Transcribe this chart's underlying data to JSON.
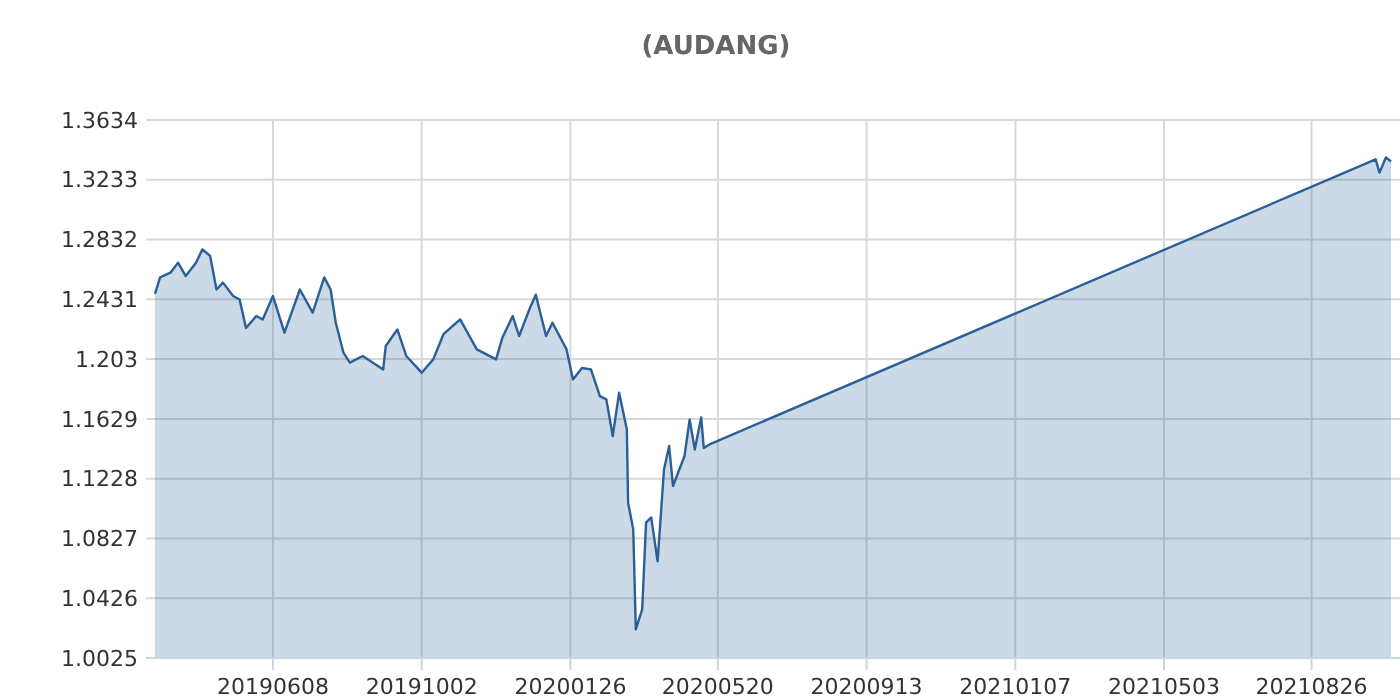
{
  "chart_data": {
    "type": "area",
    "title": "(AUDANG)",
    "x": [
      "2019-03-08",
      "2019-03-12",
      "2019-03-20",
      "2019-03-26",
      "2019-04-01",
      "2019-04-09",
      "2019-04-14",
      "2019-04-20",
      "2019-04-25",
      "2019-04-30",
      "2019-05-08",
      "2019-05-13",
      "2019-05-18",
      "2019-05-26",
      "2019-05-31",
      "2019-06-08",
      "2019-06-17",
      "2019-06-29",
      "2019-07-09",
      "2019-07-18",
      "2019-07-23",
      "2019-07-27",
      "2019-08-02",
      "2019-08-07",
      "2019-08-17",
      "2019-09-02",
      "2019-09-04",
      "2019-09-13",
      "2019-09-20",
      "2019-10-02",
      "2019-10-11",
      "2019-10-19",
      "2019-11-01",
      "2019-11-14",
      "2019-11-29",
      "2019-12-04",
      "2019-12-12",
      "2019-12-17",
      "2019-12-25",
      "2019-12-30",
      "2020-01-07",
      "2020-01-12",
      "2020-01-23",
      "2020-01-28",
      "2020-02-04",
      "2020-02-11",
      "2020-02-18",
      "2020-02-23",
      "2020-02-28",
      "2020-03-04",
      "2020-03-10",
      "2020-03-11",
      "2020-03-15",
      "2020-03-17",
      "2020-03-22",
      "2020-03-25",
      "2020-03-29",
      "2020-04-03",
      "2020-04-08",
      "2020-04-12",
      "2020-04-15",
      "2020-04-24",
      "2020-04-28",
      "2020-05-02",
      "2020-05-07",
      "2020-05-09",
      "2020-05-14",
      "2021-10-15",
      "2021-10-18",
      "2021-10-23",
      "2021-10-27"
    ],
    "series": [
      {
        "color": "#2a5f98",
        "values": [
          1.2467,
          1.2578,
          1.261,
          1.2677,
          1.2587,
          1.2677,
          1.2766,
          1.2722,
          1.2497,
          1.2543,
          1.2453,
          1.243,
          1.2239,
          1.2319,
          1.2296,
          1.2453,
          1.2208,
          1.2497,
          1.2342,
          1.2578,
          1.2497,
          1.2274,
          1.2073,
          1.2006,
          1.2051,
          1.1961,
          1.2118,
          1.2229,
          1.2051,
          1.1939,
          1.2028,
          1.2197,
          1.2296,
          1.2095,
          1.2028,
          1.2175,
          1.2319,
          1.2185,
          1.2364,
          1.2462,
          1.2185,
          1.2274,
          1.2095,
          1.1894,
          1.197,
          1.1961,
          1.1782,
          1.176,
          1.1514,
          1.1805,
          1.1559,
          1.1067,
          1.0888,
          1.0217,
          1.0351,
          1.0933,
          1.0968,
          1.0673,
          1.129,
          1.1447,
          1.1179,
          1.138,
          1.1626,
          1.1424,
          1.1639,
          1.1434,
          1.146,
          1.337,
          1.3281,
          1.3383,
          1.3356
        ]
      }
    ],
    "xlim": [
      "2019-03-01",
      "2021-11-03"
    ],
    "xticks": [
      {
        "value": "2019-06-08",
        "label": "20190608"
      },
      {
        "value": "2019-10-02",
        "label": "20191002"
      },
      {
        "value": "2020-01-26",
        "label": "20200126"
      },
      {
        "value": "2020-05-20",
        "label": "20200520"
      },
      {
        "value": "2020-09-13",
        "label": "20200913"
      },
      {
        "value": "2021-01-07",
        "label": "20210107"
      },
      {
        "value": "2021-05-03",
        "label": "20210503"
      },
      {
        "value": "2021-08-26",
        "label": "20210826"
      }
    ],
    "ylim": [
      1.0025,
      1.3634
    ],
    "yticks": [
      1.0025,
      1.0426,
      1.0827,
      1.1228,
      1.1629,
      1.203,
      1.2431,
      1.2832,
      1.3233,
      1.3634
    ],
    "grid": true
  }
}
